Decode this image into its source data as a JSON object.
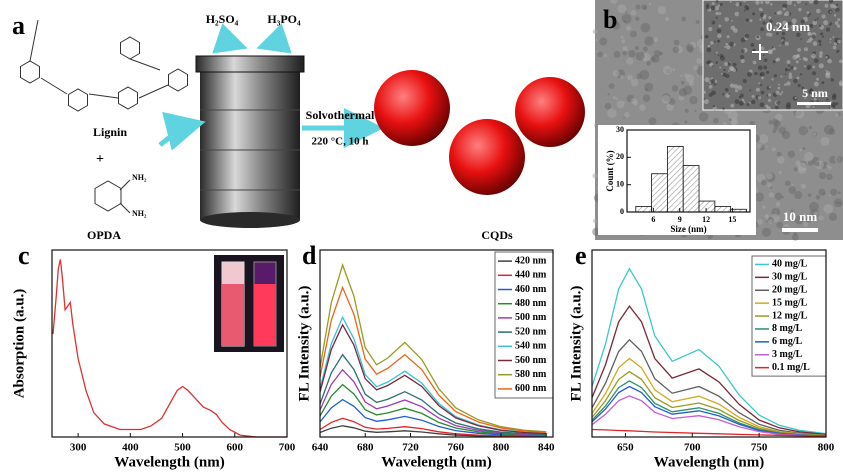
{
  "scheme": {
    "panel": "a",
    "acid1": "H₂SO₄",
    "acid2": "H₃PO₄",
    "lignin": "Lignin",
    "plus": "+",
    "opda": "OPDA",
    "amine1": "NH₂",
    "amine2": "NH₂",
    "condition1": "Solvothermal",
    "condition2": "220 °C, 10 h",
    "product": "CQDs"
  },
  "tem": {
    "panel": "b",
    "lattice": "0.24 nm",
    "scale_inset": "5 nm",
    "scale": "10 nm"
  },
  "chart_data": [
    {
      "type": "histogram",
      "xlabel": "Size (nm)",
      "ylabel": "Count (%)",
      "bins": [
        4,
        5.8,
        7.6,
        9.4,
        11.2,
        13,
        14.8,
        16.6
      ],
      "counts": [
        2,
        14,
        24,
        17,
        4,
        2,
        1
      ],
      "color": "#ffffff",
      "xlim": [
        3,
        17
      ],
      "xticks": [
        6,
        9,
        12,
        15
      ],
      "ylim": [
        0,
        30
      ],
      "yticks": [
        0,
        10,
        20,
        30
      ]
    },
    {
      "type": "line",
      "panel": "c",
      "xlabel": "Wavelength (nm)",
      "ylabel": "Absorption (a.u.)",
      "xlim": [
        250,
        700
      ],
      "xticks": [
        300,
        400,
        500,
        600,
        700
      ],
      "ylim": [
        0,
        1
      ],
      "x": [
        252,
        258,
        262,
        266,
        270,
        275,
        280,
        285,
        290,
        300,
        315,
        330,
        350,
        380,
        400,
        420,
        440,
        460,
        480,
        490,
        500,
        510,
        520,
        540,
        555,
        565,
        575,
        590,
        610,
        640,
        660,
        700
      ],
      "series": [
        {
          "color": "#e03030",
          "values": [
            0.55,
            0.75,
            0.9,
            0.95,
            0.85,
            0.68,
            0.7,
            0.72,
            0.6,
            0.42,
            0.25,
            0.13,
            0.07,
            0.04,
            0.04,
            0.04,
            0.06,
            0.1,
            0.2,
            0.25,
            0.27,
            0.25,
            0.22,
            0.16,
            0.14,
            0.12,
            0.08,
            0.04,
            0.01,
            0,
            0,
            0
          ]
        }
      ]
    },
    {
      "type": "line",
      "panel": "d",
      "xlabel": "Wavelength (nm)",
      "ylabel": "FL Intensity (a.u.)",
      "xlim": [
        640,
        846
      ],
      "xticks": [
        640,
        680,
        720,
        760,
        800,
        840
      ],
      "ylim": [
        0,
        1
      ],
      "legend": "upper right",
      "x": [
        640,
        650,
        660,
        670,
        680,
        690,
        700,
        715,
        730,
        745,
        760,
        780,
        800,
        820,
        840
      ],
      "series": [
        {
          "name": "420 nm",
          "color": "#404040",
          "values": [
            0.024,
            0.047,
            0.06,
            0.049,
            0.031,
            0.025,
            0.028,
            0.033,
            0.027,
            0.017,
            0.01,
            0.006,
            0.004,
            0.002,
            0.002
          ]
        },
        {
          "name": "440 nm",
          "color": "#e0262b",
          "values": [
            0.04,
            0.078,
            0.1,
            0.082,
            0.052,
            0.042,
            0.046,
            0.055,
            0.045,
            0.028,
            0.017,
            0.01,
            0.006,
            0.004,
            0.003
          ]
        },
        {
          "name": "460 nm",
          "color": "#1f5fd0",
          "values": [
            0.08,
            0.156,
            0.2,
            0.164,
            0.104,
            0.084,
            0.092,
            0.11,
            0.09,
            0.056,
            0.034,
            0.02,
            0.012,
            0.008,
            0.006
          ]
        },
        {
          "name": "480 nm",
          "color": "#2a8a2a",
          "values": [
            0.112,
            0.218,
            0.28,
            0.23,
            0.146,
            0.118,
            0.129,
            0.154,
            0.126,
            0.078,
            0.048,
            0.028,
            0.017,
            0.011,
            0.008
          ]
        },
        {
          "name": "500 nm",
          "color": "#9b3fb5",
          "values": [
            0.144,
            0.281,
            0.36,
            0.295,
            0.187,
            0.151,
            0.166,
            0.198,
            0.162,
            0.101,
            0.061,
            0.036,
            0.022,
            0.014,
            0.011
          ]
        },
        {
          "name": "520 nm",
          "color": "#2f6f6f",
          "values": [
            0.176,
            0.343,
            0.44,
            0.361,
            0.229,
            0.185,
            0.202,
            0.242,
            0.198,
            0.123,
            0.075,
            0.044,
            0.026,
            0.018,
            0.013
          ]
        },
        {
          "name": "540 nm",
          "color": "#3cc0d8",
          "values": [
            0.256,
            0.499,
            0.64,
            0.525,
            0.333,
            0.269,
            0.294,
            0.352,
            0.288,
            0.179,
            0.109,
            0.064,
            0.038,
            0.026,
            0.019
          ]
        },
        {
          "name": "560 nm",
          "color": "#7a2838",
          "values": [
            0.24,
            0.468,
            0.6,
            0.492,
            0.312,
            0.252,
            0.276,
            0.33,
            0.27,
            0.168,
            0.102,
            0.06,
            0.036,
            0.024,
            0.018
          ]
        },
        {
          "name": "580 nm",
          "color": "#9a9a20",
          "values": [
            0.368,
            0.718,
            0.92,
            0.754,
            0.478,
            0.386,
            0.423,
            0.506,
            0.414,
            0.258,
            0.156,
            0.092,
            0.055,
            0.037,
            0.028
          ]
        },
        {
          "name": "600 nm",
          "color": "#e8641a",
          "values": [
            0.32,
            0.624,
            0.8,
            0.656,
            0.416,
            0.336,
            0.368,
            0.44,
            0.36,
            0.224,
            0.136,
            0.08,
            0.048,
            0.032,
            0.024
          ]
        }
      ]
    },
    {
      "type": "line",
      "panel": "e",
      "xlabel": "Wavelength (nm)",
      "ylabel": "FL Intensity (a.u.)",
      "xlim": [
        625,
        800
      ],
      "xticks": [
        650,
        700,
        750,
        800
      ],
      "ylim": [
        0,
        1
      ],
      "legend": "upper right",
      "x": [
        625,
        635,
        645,
        653,
        662,
        672,
        685,
        705,
        720,
        735,
        750,
        765,
        780,
        800
      ],
      "series": [
        {
          "name": "40 mg/L",
          "color": "#3cc8c8",
          "values": [
            0.27,
            0.495,
            0.792,
            0.9,
            0.792,
            0.54,
            0.405,
            0.468,
            0.378,
            0.225,
            0.117,
            0.063,
            0.036,
            0.018
          ]
        },
        {
          "name": "30 mg/L",
          "color": "#7a2838",
          "values": [
            0.21,
            0.385,
            0.616,
            0.7,
            0.616,
            0.42,
            0.315,
            0.364,
            0.294,
            0.175,
            0.091,
            0.049,
            0.028,
            0.014
          ]
        },
        {
          "name": "20 mg/L",
          "color": "#606060",
          "values": [
            0.156,
            0.286,
            0.458,
            0.52,
            0.458,
            0.312,
            0.234,
            0.27,
            0.218,
            0.13,
            0.068,
            0.036,
            0.021,
            0.01
          ]
        },
        {
          "name": "15 mg/L",
          "color": "#d4a820",
          "values": [
            0.126,
            0.231,
            0.37,
            0.42,
            0.37,
            0.252,
            0.189,
            0.218,
            0.176,
            0.105,
            0.055,
            0.029,
            0.017,
            0.008
          ]
        },
        {
          "name": "12 mg/L",
          "color": "#9a9a20",
          "values": [
            0.105,
            0.193,
            0.308,
            0.35,
            0.308,
            0.21,
            0.158,
            0.182,
            0.147,
            0.088,
            0.046,
            0.025,
            0.014,
            0.007
          ]
        },
        {
          "name": "8 mg/L",
          "color": "#2f8f6f",
          "values": [
            0.09,
            0.165,
            0.264,
            0.3,
            0.264,
            0.18,
            0.135,
            0.156,
            0.126,
            0.075,
            0.039,
            0.021,
            0.012,
            0.006
          ]
        },
        {
          "name": "6 mg/L",
          "color": "#2060c8",
          "values": [
            0.081,
            0.149,
            0.238,
            0.27,
            0.238,
            0.162,
            0.122,
            0.14,
            0.113,
            0.068,
            0.035,
            0.019,
            0.011,
            0.005
          ]
        },
        {
          "name": "3 mg/L",
          "color": "#c060d8",
          "values": [
            0.066,
            0.121,
            0.194,
            0.22,
            0.194,
            0.132,
            0.099,
            0.114,
            0.092,
            0.055,
            0.029,
            0.015,
            0.009,
            0.004
          ]
        },
        {
          "name": "0.1 mg/L",
          "color": "#e0262b",
          "values": [
            0.04,
            0.038,
            0.035,
            0.033,
            0.03,
            0.027,
            0.024,
            0.02,
            0.017,
            0.014,
            0.011,
            0.009,
            0.007,
            0.005
          ]
        }
      ]
    }
  ]
}
